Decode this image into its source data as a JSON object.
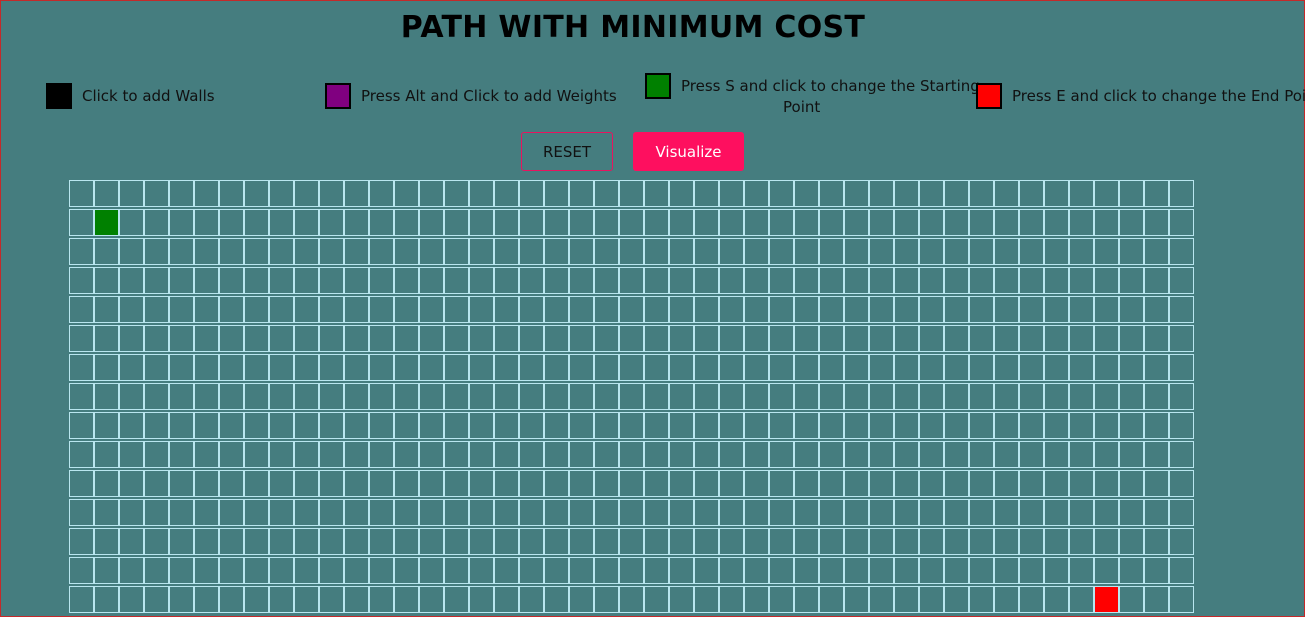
{
  "header": {
    "title": "PATH WITH MINIMUM COST"
  },
  "legend": [
    {
      "id": "walls",
      "label": "Click to add Walls",
      "color": "#000000",
      "icon": "wall-swatch"
    },
    {
      "id": "weights",
      "label": "Press Alt and Click to add Weights",
      "color": "#800080",
      "icon": "weight-swatch"
    },
    {
      "id": "start",
      "label_line1": "Press S and click to change the Starting",
      "label_line2": "Point",
      "color": "#008000",
      "icon": "start-swatch"
    },
    {
      "id": "end",
      "label": "Press E and click to change the End Point",
      "color": "#ff0000",
      "icon": "end-swatch"
    }
  ],
  "controls": {
    "reset_label": "RESET",
    "visualize_label": "Visualize"
  },
  "grid": {
    "rows": 15,
    "cols": 45,
    "start": {
      "row": 1,
      "col": 1
    },
    "end": {
      "row": 14,
      "col": 41
    },
    "colors": {
      "line": "#b9e6ef",
      "start": "#008000",
      "end": "#ff0000"
    }
  }
}
